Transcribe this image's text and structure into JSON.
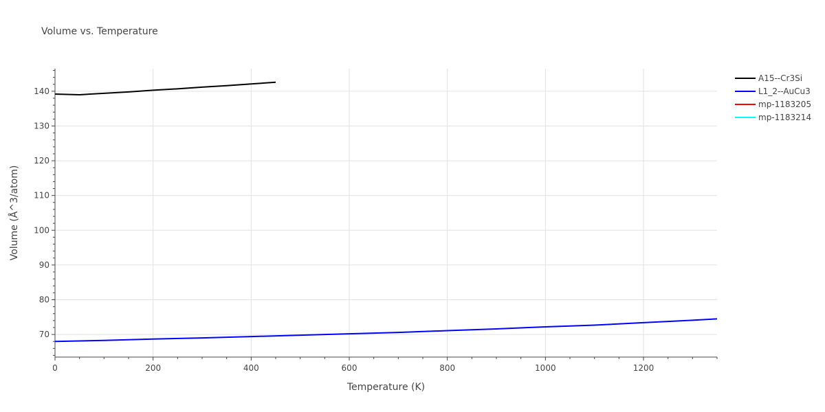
{
  "chart_data": {
    "type": "line",
    "title": "Volume vs. Temperature",
    "xlabel": "Temperature (K)",
    "ylabel": "Volume (Å^3/atom)",
    "xlim": [
      0,
      1350
    ],
    "ylim": [
      63.5,
      146.5
    ],
    "x_ticks": [
      0,
      200,
      400,
      600,
      800,
      1000,
      1200
    ],
    "y_ticks": [
      70,
      80,
      90,
      100,
      110,
      120,
      130,
      140
    ],
    "x_tick_labels": [
      "0",
      "200",
      "400",
      "600",
      "800",
      "1000",
      "1200"
    ],
    "y_tick_labels": [
      "70",
      "80",
      "90",
      "100",
      "110",
      "120",
      "130",
      "140"
    ],
    "grid": true,
    "legend_position": "top-right-outside",
    "series": [
      {
        "name": "A15--Cr3Si",
        "color": "#000000",
        "x": [
          0,
          50,
          100,
          150,
          200,
          250,
          300,
          350,
          400,
          450
        ],
        "y": [
          139.2,
          139.0,
          139.4,
          139.8,
          140.3,
          140.7,
          141.2,
          141.6,
          142.1,
          142.6
        ]
      },
      {
        "name": "L1_2--AuCu3",
        "color": "#0000ff",
        "x": [
          0,
          100,
          200,
          300,
          400,
          500,
          600,
          700,
          800,
          900,
          1000,
          1100,
          1200,
          1300,
          1350
        ],
        "y": [
          68.0,
          68.3,
          68.7,
          69.0,
          69.4,
          69.8,
          70.2,
          70.6,
          71.1,
          71.6,
          72.2,
          72.7,
          73.4,
          74.1,
          74.5
        ]
      },
      {
        "name": "mp-1183205",
        "color": "#ff0000",
        "x": [],
        "y": []
      },
      {
        "name": "mp-1183214",
        "color": "#00ffff",
        "x": [],
        "y": []
      }
    ]
  }
}
